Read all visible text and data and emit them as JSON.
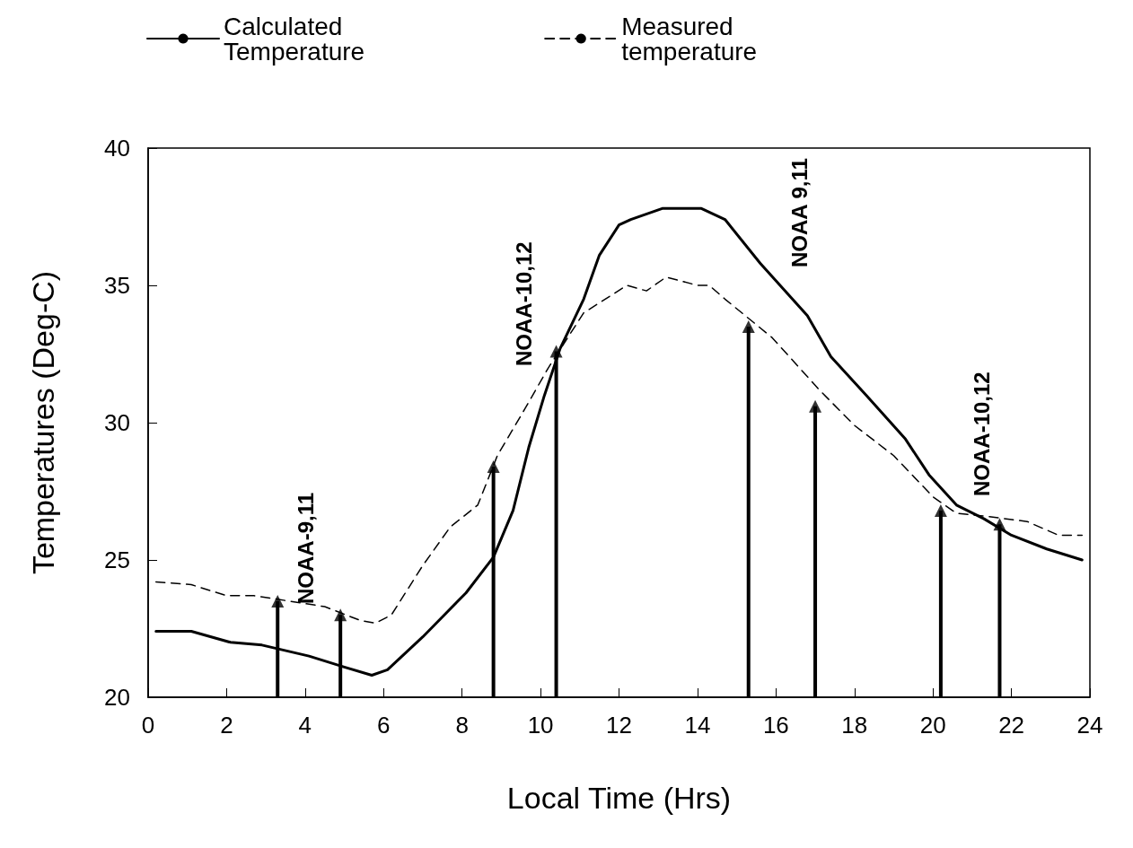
{
  "chart_data": {
    "type": "line",
    "xlabel": "Local Time (Hrs)",
    "ylabel": "Temperatures (Deg-C)",
    "xlim": [
      0,
      24
    ],
    "xticks": [
      0,
      2,
      4,
      6,
      8,
      10,
      12,
      14,
      16,
      18,
      20,
      22,
      24
    ],
    "ylim": [
      20,
      40
    ],
    "yticks": [
      20,
      25,
      30,
      35,
      40
    ],
    "grid": false,
    "legend": "top",
    "series": [
      {
        "name": "Calculated\nTemperature",
        "color": "#000000",
        "line_style": "solid",
        "x": [
          0.2,
          1.1,
          2.1,
          2.9,
          4.1,
          5.0,
          5.7,
          6.1,
          7.0,
          8.1,
          8.8,
          9.3,
          9.7,
          10.1,
          10.5,
          11.1,
          11.5,
          12.0,
          12.3,
          13.1,
          14.1,
          14.7,
          15.6,
          16.8,
          17.4,
          18.3,
          19.3,
          19.9,
          20.6,
          21.3,
          22.0,
          22.9,
          23.8
        ],
        "values": [
          22.4,
          22.4,
          22.0,
          21.9,
          21.5,
          21.1,
          20.8,
          21.0,
          22.2,
          23.8,
          25.1,
          26.8,
          29.1,
          31.0,
          32.7,
          34.5,
          36.1,
          37.2,
          37.4,
          37.8,
          37.8,
          37.4,
          35.8,
          33.9,
          32.4,
          31.0,
          29.4,
          28.1,
          27.0,
          26.5,
          25.9,
          25.4,
          25.0
        ]
      },
      {
        "name": "Measured\ntemperature",
        "color": "#000000",
        "line_style": "dashed",
        "x": [
          0.2,
          1.1,
          2.0,
          2.7,
          3.6,
          4.5,
          5.4,
          5.8,
          6.2,
          7.0,
          7.7,
          8.4,
          8.9,
          9.6,
          10.2,
          11.1,
          12.2,
          12.7,
          13.2,
          14.0,
          14.3,
          14.7,
          15.9,
          17.1,
          18.0,
          19.0,
          20.0,
          20.6,
          21.3,
          22.4,
          23.2,
          23.8
        ],
        "values": [
          24.2,
          24.1,
          23.7,
          23.7,
          23.5,
          23.3,
          22.8,
          22.7,
          23.0,
          24.8,
          26.2,
          27.0,
          28.8,
          30.5,
          32.0,
          34.0,
          35.0,
          34.8,
          35.3,
          35.0,
          35.0,
          34.5,
          33.1,
          31.2,
          29.9,
          28.8,
          27.3,
          26.7,
          26.6,
          26.4,
          25.9,
          25.9
        ]
      },
      {
        "type": "lollipop",
        "color": "#000000",
        "marker": "triangle",
        "x": [
          3.3,
          4.9,
          8.8,
          10.4,
          15.3,
          17.0,
          20.2,
          21.7
        ],
        "values": [
          23.5,
          23.0,
          28.4,
          32.6,
          33.5,
          30.6,
          26.8,
          26.3
        ]
      }
    ],
    "annotations": [
      "NOAA-9,11",
      "NOAA-10,12",
      "NOAA 9,11",
      "NOAA-10,12"
    ]
  }
}
